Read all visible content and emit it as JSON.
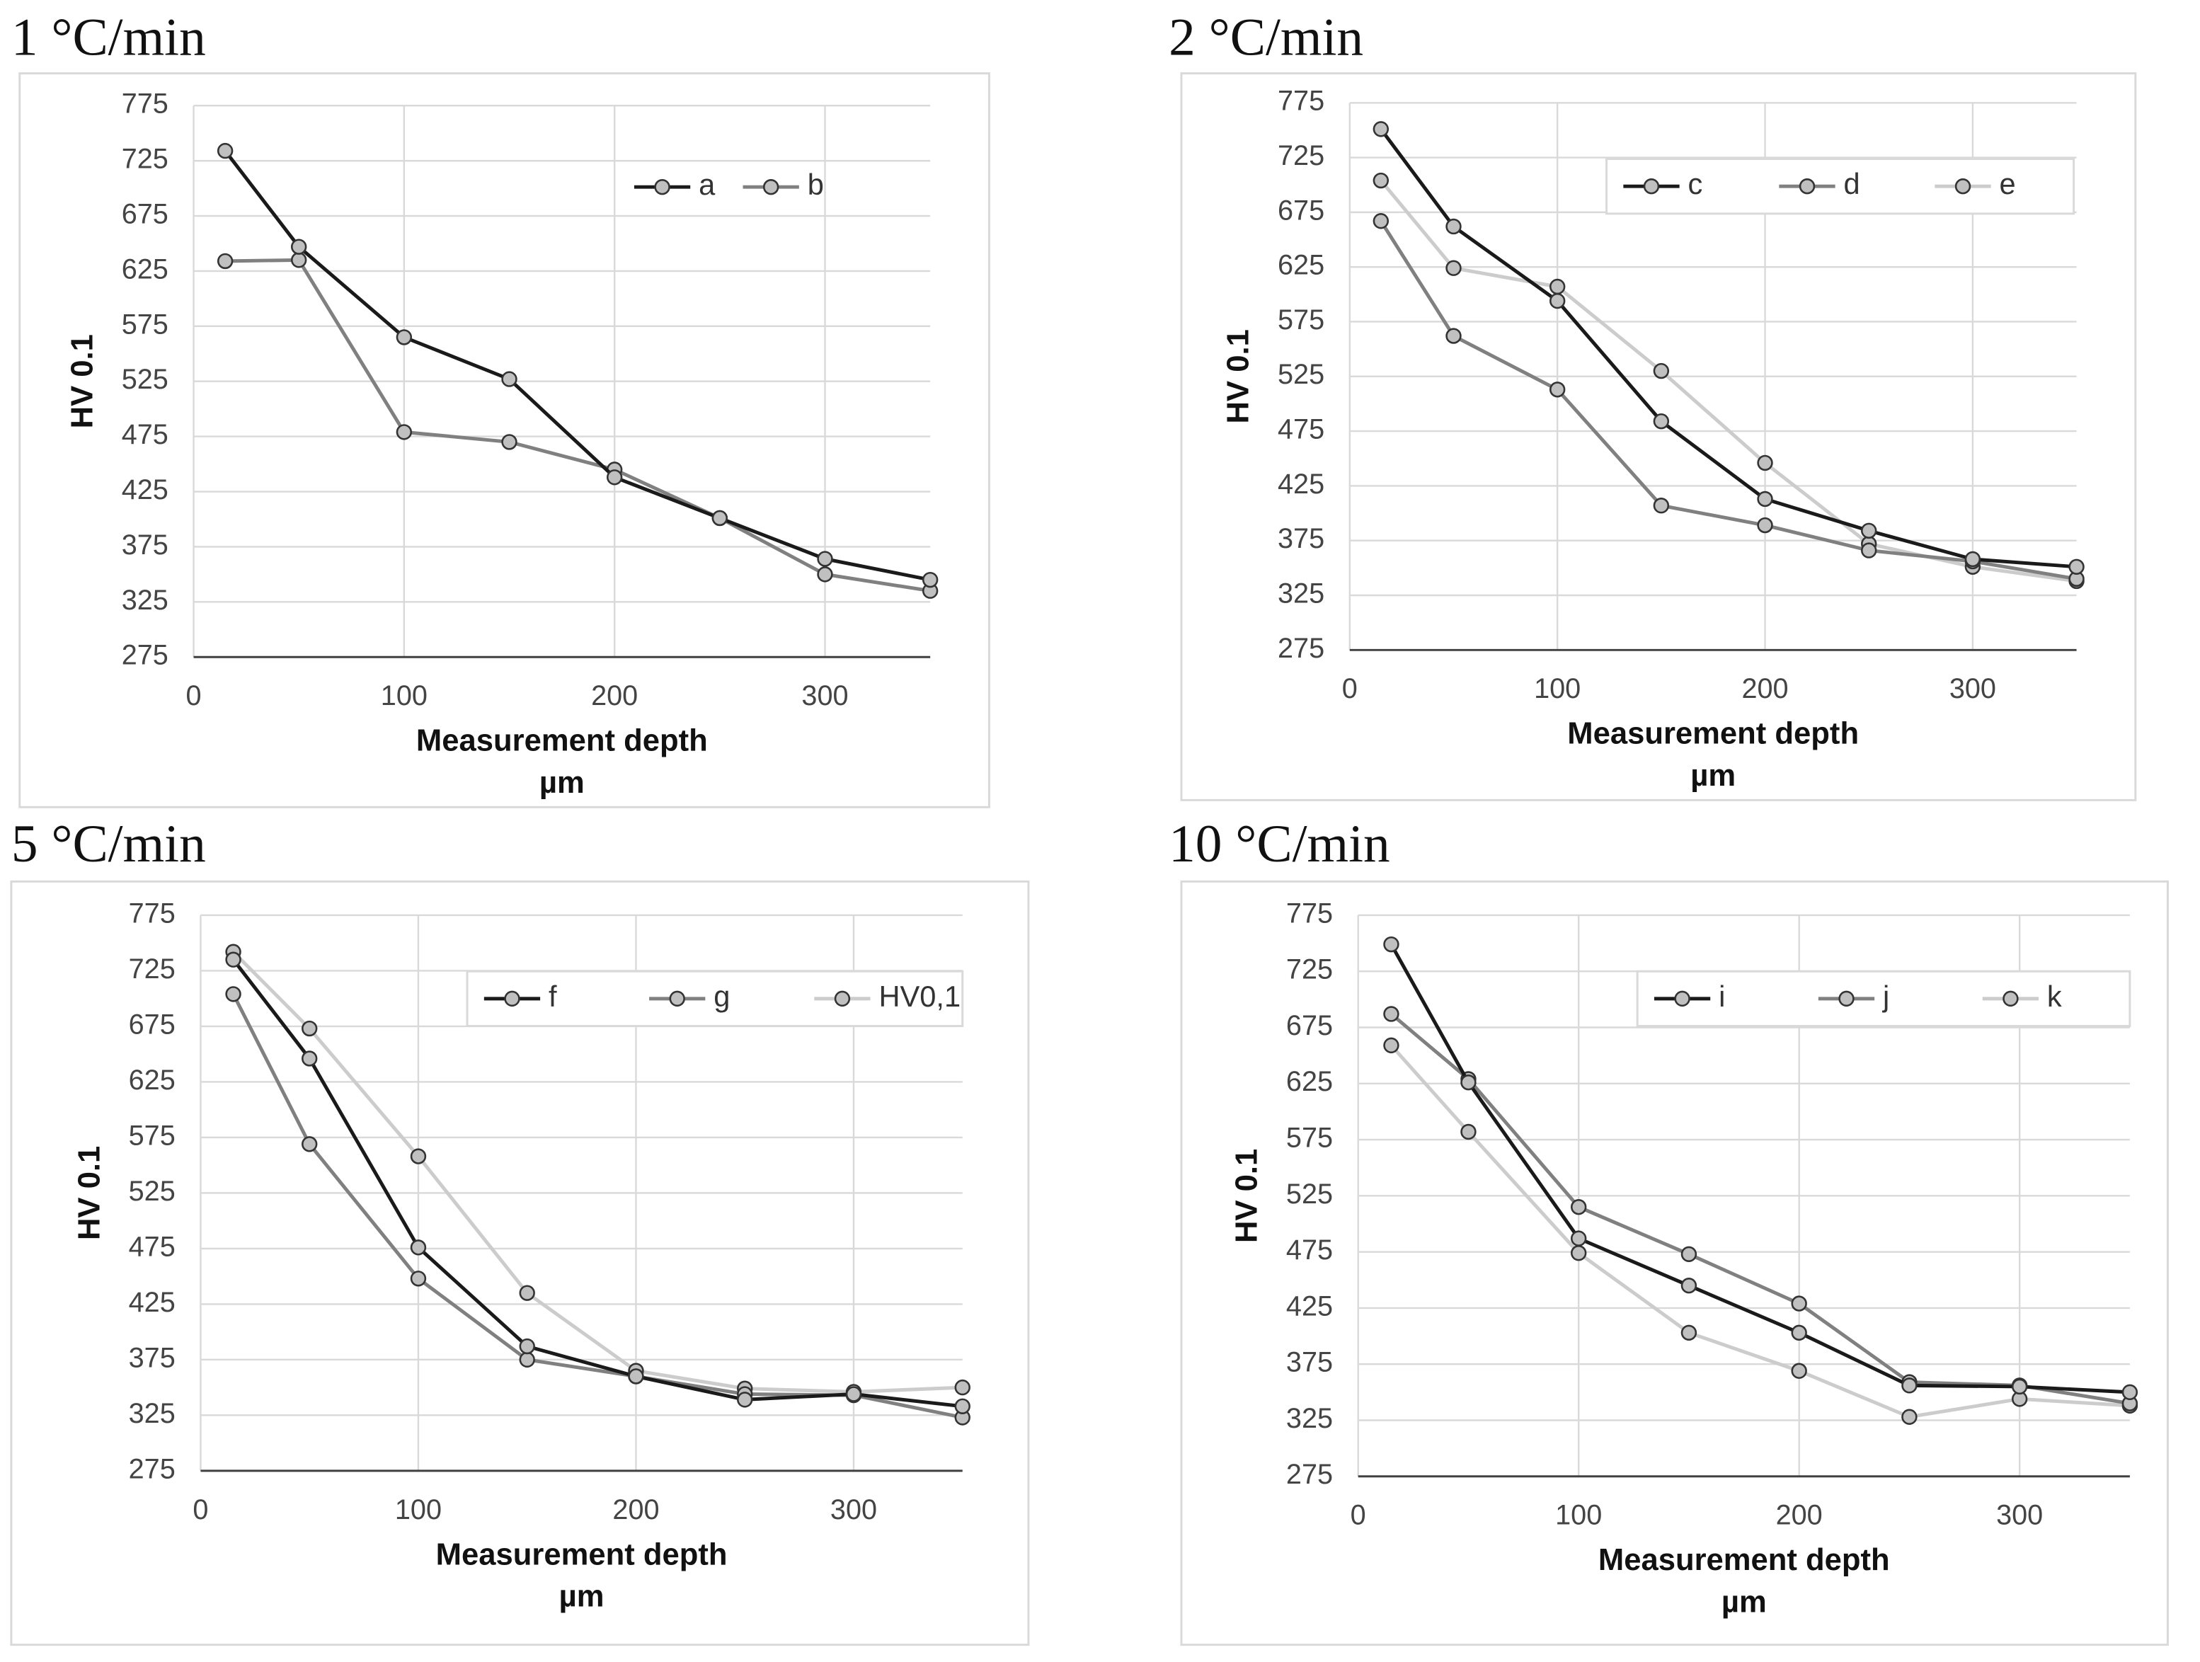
{
  "chart_data": [
    {
      "type": "line",
      "title": "1 °C/min",
      "xlabel": "Measurement depth",
      "xlabel_unit": "µm",
      "ylabel": "HV 0.1",
      "x": [
        15,
        50,
        100,
        150,
        200,
        250,
        300,
        350
      ],
      "series": [
        {
          "name": "a",
          "color": "#1a1a1a",
          "values": [
            734,
            647,
            565,
            527,
            438,
            401,
            364,
            345
          ]
        },
        {
          "name": "b",
          "color": "#808080",
          "values": [
            634,
            635,
            479,
            470,
            445,
            401,
            350,
            335
          ]
        }
      ],
      "xlim": [
        0,
        350
      ],
      "xticks": [
        0,
        100,
        200,
        300
      ],
      "ylim": [
        275,
        775
      ],
      "yticks": [
        275,
        325,
        375,
        425,
        475,
        525,
        575,
        625,
        675,
        725,
        775
      ],
      "grid": true,
      "legend": "top-right",
      "legend_frame": false,
      "marker_color": "#c0c0c0"
    },
    {
      "type": "line",
      "title": "2 °C/min",
      "xlabel": "Measurement depth",
      "xlabel_unit": "µm",
      "ylabel": "HV 0.1",
      "x": [
        15,
        50,
        100,
        150,
        200,
        250,
        300,
        350
      ],
      "series": [
        {
          "name": "c",
          "color": "#1a1a1a",
          "values": [
            751,
            662,
            594,
            484,
            413,
            384,
            358,
            351
          ]
        },
        {
          "name": "d",
          "color": "#808080",
          "values": [
            667,
            562,
            513,
            407,
            389,
            366,
            356,
            340
          ]
        },
        {
          "name": "e",
          "color": "#cccccc",
          "values": [
            704,
            624,
            607,
            530,
            446,
            372,
            351,
            338
          ]
        }
      ],
      "xlim": [
        0,
        350
      ],
      "xticks": [
        0,
        100,
        200,
        300
      ],
      "ylim": [
        275,
        775
      ],
      "yticks": [
        275,
        325,
        375,
        425,
        475,
        525,
        575,
        625,
        675,
        725,
        775
      ],
      "grid": true,
      "legend": "top-right",
      "legend_frame": true,
      "marker_color": "#c0c0c0"
    },
    {
      "type": "line",
      "title": "5 °C/min",
      "xlabel": "Measurement depth",
      "xlabel_unit": "µm",
      "ylabel": "HV 0.1",
      "x": [
        15,
        50,
        100,
        150,
        200,
        250,
        300,
        350
      ],
      "series": [
        {
          "name": "f",
          "color": "#1a1a1a",
          "values": [
            735,
            646,
            476,
            387,
            360,
            339,
            344,
            333
          ]
        },
        {
          "name": "g",
          "color": "#808080",
          "values": [
            704,
            569,
            448,
            375,
            360,
            344,
            343,
            323
          ]
        },
        {
          "name": "HV0,1",
          "color": "#cccccc",
          "values": [
            742,
            673,
            558,
            435,
            365,
            349,
            346,
            350
          ]
        }
      ],
      "xlim": [
        0,
        350
      ],
      "xticks": [
        0,
        100,
        200,
        300
      ],
      "ylim": [
        275,
        775
      ],
      "yticks": [
        275,
        325,
        375,
        425,
        475,
        525,
        575,
        625,
        675,
        725,
        775
      ],
      "grid": true,
      "legend": "top-right",
      "legend_frame": true,
      "marker_color": "#c0c0c0"
    },
    {
      "type": "line",
      "title": "10 °C/min",
      "xlabel": "Measurement depth",
      "xlabel_unit": "µm",
      "ylabel": "HV 0.1",
      "x": [
        15,
        50,
        100,
        150,
        200,
        250,
        300,
        350
      ],
      "series": [
        {
          "name": "i",
          "color": "#1a1a1a",
          "values": [
            749,
            626,
            487,
            445,
            403,
            356,
            355,
            350
          ]
        },
        {
          "name": "j",
          "color": "#808080",
          "values": [
            687,
            629,
            515,
            473,
            429,
            359,
            356,
            340
          ]
        },
        {
          "name": "k",
          "color": "#cccccc",
          "values": [
            659,
            582,
            474,
            403,
            369,
            328,
            344,
            338
          ]
        }
      ],
      "xlim": [
        0,
        350
      ],
      "xticks": [
        0,
        100,
        200,
        300
      ],
      "ylim": [
        275,
        775
      ],
      "yticks": [
        275,
        325,
        375,
        425,
        475,
        525,
        575,
        625,
        675,
        725,
        775
      ],
      "grid": true,
      "legend": "top-right",
      "legend_frame": true,
      "marker_color": "#c0c0c0"
    }
  ]
}
